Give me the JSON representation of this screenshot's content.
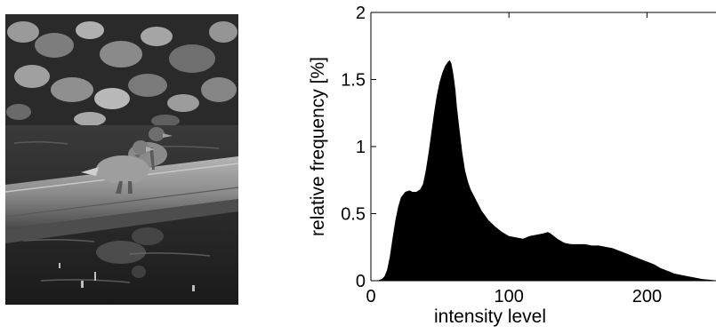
{
  "photo": {
    "subject": "grayscale photograph of two ducks standing on a log over water, foliage above"
  },
  "chart_data": {
    "type": "area",
    "title": "",
    "xlabel": "intensity level",
    "ylabel": "relative frequency [%]",
    "xlim": [
      0,
      250
    ],
    "ylim": [
      0,
      2
    ],
    "xticks": [
      0,
      100,
      200
    ],
    "yticks": [
      0,
      0.5,
      1,
      1.5,
      2
    ],
    "xtick_labels": [
      "0",
      "100",
      "200"
    ],
    "ytick_labels": [
      "0",
      "0.5",
      "1",
      "1.5",
      "2"
    ],
    "grid": false,
    "fill_color": "#000000",
    "series": [
      {
        "x": [
          0,
          5,
          8,
          10,
          12,
          14,
          16,
          18,
          20,
          22,
          25,
          28,
          30,
          33,
          36,
          38,
          40,
          42,
          44,
          46,
          48,
          50,
          52,
          54,
          56,
          57,
          58,
          59,
          60,
          61,
          62,
          64,
          66,
          68,
          70,
          72,
          75,
          78,
          80,
          85,
          90,
          95,
          100,
          105,
          110,
          115,
          120,
          125,
          128,
          130,
          135,
          140,
          145,
          150,
          155,
          160,
          165,
          170,
          175,
          180,
          185,
          190,
          195,
          200,
          205,
          210,
          215,
          220,
          225,
          230,
          235,
          240,
          245,
          250
        ],
        "y": [
          0,
          0,
          0.01,
          0.03,
          0.08,
          0.18,
          0.32,
          0.45,
          0.55,
          0.62,
          0.66,
          0.67,
          0.66,
          0.66,
          0.68,
          0.72,
          0.82,
          0.95,
          1.1,
          1.25,
          1.38,
          1.48,
          1.55,
          1.6,
          1.63,
          1.64,
          1.62,
          1.57,
          1.5,
          1.42,
          1.3,
          1.12,
          0.95,
          0.82,
          0.74,
          0.68,
          0.62,
          0.56,
          0.52,
          0.45,
          0.4,
          0.36,
          0.33,
          0.32,
          0.31,
          0.33,
          0.34,
          0.35,
          0.36,
          0.35,
          0.31,
          0.28,
          0.27,
          0.27,
          0.27,
          0.26,
          0.26,
          0.25,
          0.24,
          0.22,
          0.2,
          0.18,
          0.16,
          0.14,
          0.12,
          0.09,
          0.07,
          0.05,
          0.04,
          0.03,
          0.02,
          0.01,
          0.005,
          0
        ]
      }
    ]
  }
}
